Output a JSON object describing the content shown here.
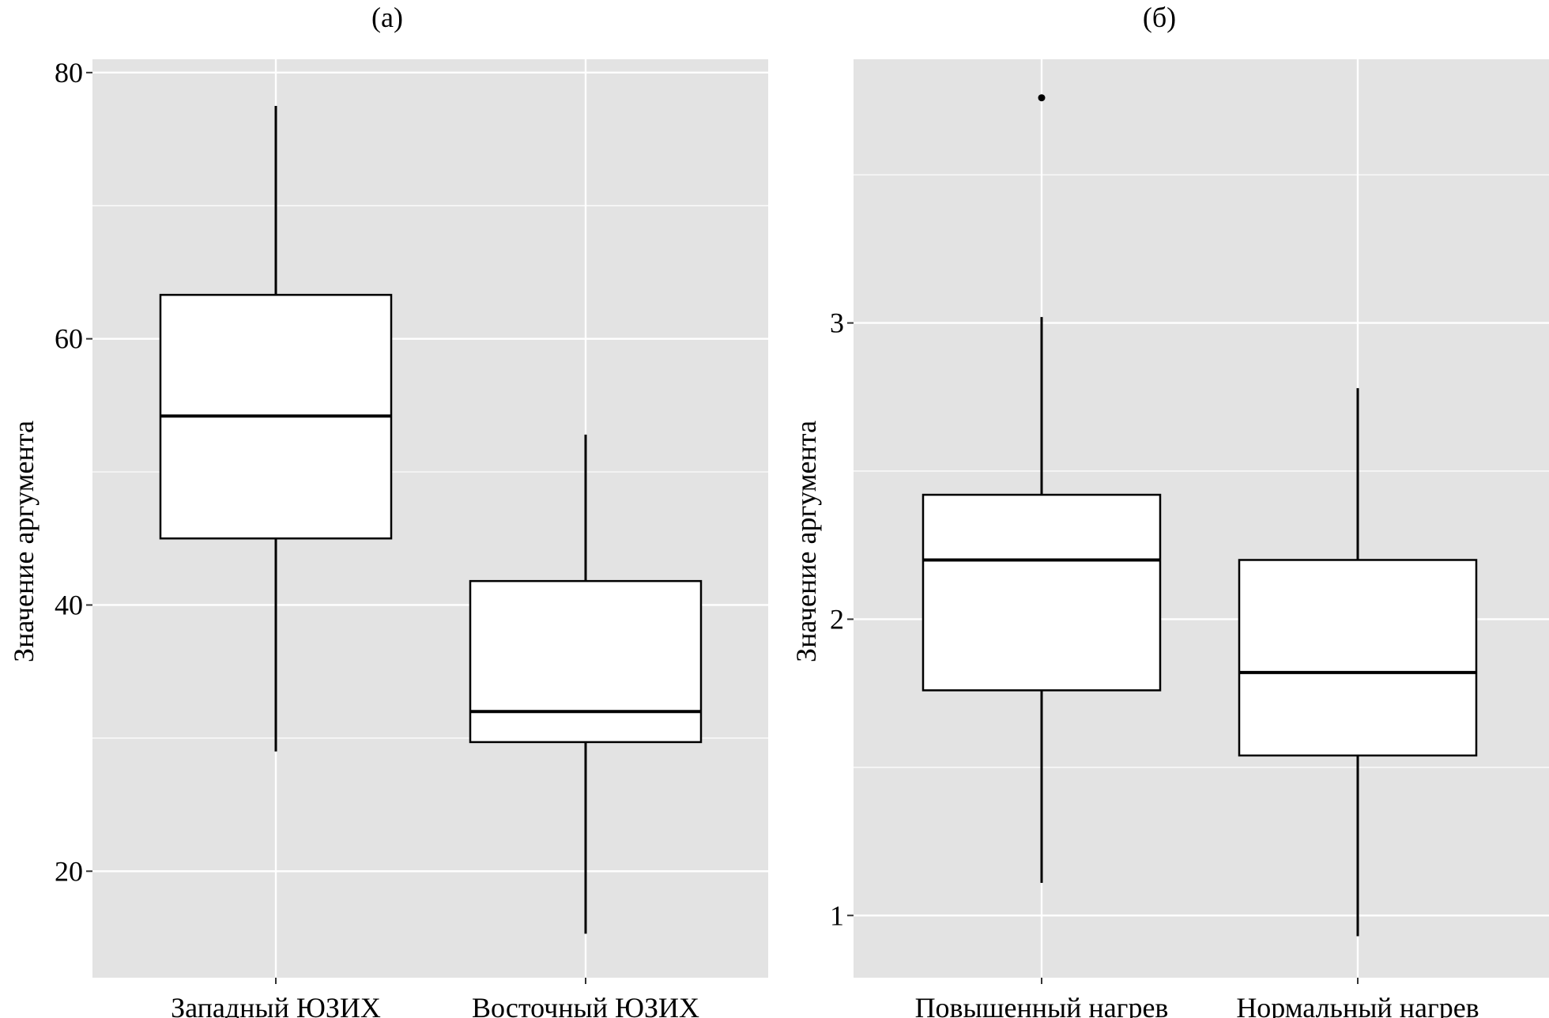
{
  "chart_data": [
    {
      "type": "boxplot",
      "panel_label": "(а)",
      "ylabel": "Значение аргумента",
      "categories": [
        "Западный ЮЗИХ",
        "Восточный ЮЗИХ"
      ],
      "ylim": [
        12,
        81
      ],
      "yticks": [
        20,
        40,
        60,
        80
      ],
      "grid": true,
      "boxes": [
        {
          "category": "Западный ЮЗИХ",
          "whisker_low": 29,
          "q1": 45,
          "median": 54.2,
          "q3": 63.3,
          "whisker_high": 77.5,
          "outliers": []
        },
        {
          "category": "Восточный ЮЗИХ",
          "whisker_low": 15.3,
          "q1": 29.7,
          "median": 32,
          "q3": 41.8,
          "whisker_high": 52.8,
          "outliers": []
        }
      ]
    },
    {
      "type": "boxplot",
      "panel_label": "(б)",
      "ylabel": "Значение аргумента",
      "categories": [
        "Повышенный нагрев",
        "Нормальный нагрев"
      ],
      "ylim": [
        0.79,
        3.89
      ],
      "yticks": [
        1,
        2,
        3
      ],
      "grid": true,
      "boxes": [
        {
          "category": "Повышенный нагрев",
          "whisker_low": 1.11,
          "q1": 1.76,
          "median": 2.2,
          "q3": 2.42,
          "whisker_high": 3.02,
          "outliers": [
            3.76
          ]
        },
        {
          "category": "Нормальный нагрев",
          "whisker_low": 0.93,
          "q1": 1.54,
          "median": 1.82,
          "q3": 2.2,
          "whisker_high": 2.78,
          "outliers": []
        }
      ]
    }
  ],
  "colors": {
    "panel_background": "#e3e3e3",
    "grid": "#ffffff",
    "box_fill": "#ffffff",
    "box_stroke": "#000000"
  }
}
